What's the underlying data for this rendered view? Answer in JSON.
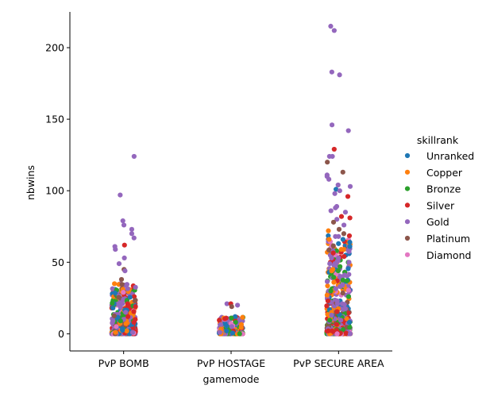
{
  "chart_data": {
    "type": "scatter",
    "style": "strip",
    "title": "",
    "xlabel": "gamemode",
    "ylabel": "nbwins",
    "categories": [
      "PvP BOMB",
      "PvP HOSTAGE",
      "PvP SECURE AREA"
    ],
    "ylim": [
      -12,
      225
    ],
    "yticks": [
      0,
      50,
      100,
      150,
      200
    ],
    "grid": false,
    "legend": {
      "title": "skillrank",
      "placement": "right",
      "entries": [
        {
          "name": "Unranked",
          "color": "#1f77b4"
        },
        {
          "name": "Copper",
          "color": "#ff7f0e"
        },
        {
          "name": "Bronze",
          "color": "#2ca02c"
        },
        {
          "name": "Silver",
          "color": "#d62728"
        },
        {
          "name": "Gold",
          "color": "#9467bd"
        },
        {
          "name": "Platinum",
          "color": "#8c564b"
        },
        {
          "name": "Diamond",
          "color": "#e377c2"
        }
      ]
    },
    "distribution": {
      "PvP BOMB": {
        "max": 124,
        "dense_upper": 35
      },
      "PvP HOSTAGE": {
        "max": 21,
        "dense_upper": 12
      },
      "PvP SECURE AREA": {
        "max": 215,
        "dense_upper": 70
      }
    },
    "highlighted_points": [
      {
        "category": "PvP BOMB",
        "y": 124,
        "series": "Gold"
      },
      {
        "category": "PvP BOMB",
        "y": 97,
        "series": "Gold"
      },
      {
        "category": "PvP BOMB",
        "y": 79,
        "series": "Gold"
      },
      {
        "category": "PvP BOMB",
        "y": 76,
        "series": "Gold"
      },
      {
        "category": "PvP BOMB",
        "y": 73,
        "series": "Gold"
      },
      {
        "category": "PvP BOMB",
        "y": 70,
        "series": "Gold"
      },
      {
        "category": "PvP BOMB",
        "y": 67,
        "series": "Gold"
      },
      {
        "category": "PvP BOMB",
        "y": 62,
        "series": "Silver"
      },
      {
        "category": "PvP BOMB",
        "y": 61,
        "series": "Gold"
      },
      {
        "category": "PvP BOMB",
        "y": 59,
        "series": "Gold"
      },
      {
        "category": "PvP BOMB",
        "y": 53,
        "series": "Gold"
      },
      {
        "category": "PvP BOMB",
        "y": 49,
        "series": "Gold"
      },
      {
        "category": "PvP BOMB",
        "y": 45,
        "series": "Platinum"
      },
      {
        "category": "PvP BOMB",
        "y": 44,
        "series": "Gold"
      },
      {
        "category": "PvP BOMB",
        "y": 38,
        "series": "Platinum"
      },
      {
        "category": "PvP HOSTAGE",
        "y": 21,
        "series": "Gold"
      },
      {
        "category": "PvP HOSTAGE",
        "y": 21,
        "series": "Silver"
      },
      {
        "category": "PvP HOSTAGE",
        "y": 20,
        "series": "Gold"
      },
      {
        "category": "PvP HOSTAGE",
        "y": 19,
        "series": "Platinum"
      },
      {
        "category": "PvP SECURE AREA",
        "y": 215,
        "series": "Gold"
      },
      {
        "category": "PvP SECURE AREA",
        "y": 212,
        "series": "Gold"
      },
      {
        "category": "PvP SECURE AREA",
        "y": 183,
        "series": "Gold"
      },
      {
        "category": "PvP SECURE AREA",
        "y": 181,
        "series": "Gold"
      },
      {
        "category": "PvP SECURE AREA",
        "y": 146,
        "series": "Gold"
      },
      {
        "category": "PvP SECURE AREA",
        "y": 142,
        "series": "Gold"
      },
      {
        "category": "PvP SECURE AREA",
        "y": 129,
        "series": "Silver"
      },
      {
        "category": "PvP SECURE AREA",
        "y": 124,
        "series": "Gold"
      },
      {
        "category": "PvP SECURE AREA",
        "y": 124,
        "series": "Gold"
      },
      {
        "category": "PvP SECURE AREA",
        "y": 120,
        "series": "Platinum"
      },
      {
        "category": "PvP SECURE AREA",
        "y": 113,
        "series": "Platinum"
      },
      {
        "category": "PvP SECURE AREA",
        "y": 111,
        "series": "Gold"
      },
      {
        "category": "PvP SECURE AREA",
        "y": 110,
        "series": "Gold"
      },
      {
        "category": "PvP SECURE AREA",
        "y": 108,
        "series": "Gold"
      },
      {
        "category": "PvP SECURE AREA",
        "y": 104,
        "series": "Gold"
      },
      {
        "category": "PvP SECURE AREA",
        "y": 103,
        "series": "Gold"
      },
      {
        "category": "PvP SECURE AREA",
        "y": 101,
        "series": "Unranked"
      },
      {
        "category": "PvP SECURE AREA",
        "y": 100,
        "series": "Gold"
      },
      {
        "category": "PvP SECURE AREA",
        "y": 98,
        "series": "Gold"
      },
      {
        "category": "PvP SECURE AREA",
        "y": 96,
        "series": "Silver"
      },
      {
        "category": "PvP SECURE AREA",
        "y": 89,
        "series": "Gold"
      },
      {
        "category": "PvP SECURE AREA",
        "y": 88,
        "series": "Gold"
      },
      {
        "category": "PvP SECURE AREA",
        "y": 86,
        "series": "Gold"
      },
      {
        "category": "PvP SECURE AREA",
        "y": 85,
        "series": "Gold"
      },
      {
        "category": "PvP SECURE AREA",
        "y": 82,
        "series": "Silver"
      },
      {
        "category": "PvP SECURE AREA",
        "y": 81,
        "series": "Silver"
      },
      {
        "category": "PvP SECURE AREA",
        "y": 80,
        "series": "Gold"
      },
      {
        "category": "PvP SECURE AREA",
        "y": 78,
        "series": "Platinum"
      },
      {
        "category": "PvP SECURE AREA",
        "y": 76,
        "series": "Gold"
      },
      {
        "category": "PvP SECURE AREA",
        "y": 73,
        "series": "Platinum"
      },
      {
        "category": "PvP SECURE AREA",
        "y": 72,
        "series": "Copper"
      },
      {
        "category": "PvP SECURE AREA",
        "y": 70,
        "series": "Platinum"
      }
    ]
  }
}
